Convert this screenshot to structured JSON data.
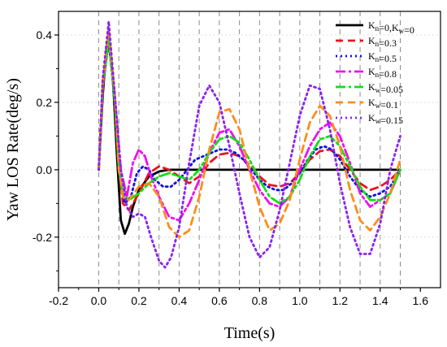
{
  "chart_data": {
    "type": "line",
    "xlabel": "Time(s)",
    "ylabel": "Yaw LOS Rate(deg/s)",
    "xlim": [
      -0.2,
      1.7
    ],
    "ylim": [
      -0.35,
      0.47
    ],
    "xticks": [
      -0.2,
      0.0,
      0.2,
      0.4,
      0.6,
      0.8,
      1.0,
      1.2,
      1.4,
      1.6
    ],
    "xtick_labels": [
      "-0.2",
      "0.0",
      "0.2",
      "0.4",
      "0.6",
      "0.8",
      "1.0",
      "1.2",
      "1.4",
      "1.6"
    ],
    "yticks": [
      -0.2,
      0.0,
      0.2,
      0.4
    ],
    "ytick_labels": [
      "-0.2",
      "0.0",
      "0.2",
      "0.4"
    ],
    "vertical_gridlines_x": [
      0.0,
      0.1,
      0.2,
      0.3,
      0.4,
      0.5,
      0.6,
      0.7,
      0.8,
      0.9,
      1.0,
      1.1,
      1.2,
      1.3,
      1.4,
      1.5
    ],
    "legend_position": "top-right",
    "series": [
      {
        "name": "Kn=0,Kw=0",
        "name_main": "K",
        "name_sub": "n",
        "name_rest": "=0,K",
        "name_sub2": "w",
        "name_tail": "=0",
        "color": "#000000",
        "style": "solid",
        "x": [
          0.0,
          0.02,
          0.04,
          0.05,
          0.07,
          0.09,
          0.11,
          0.13,
          0.15,
          0.17,
          0.2,
          0.25,
          0.3,
          0.35,
          0.4,
          0.5,
          0.6,
          0.8,
          1.0,
          1.2,
          1.4,
          1.5
        ],
        "y": [
          0.0,
          0.22,
          0.37,
          0.38,
          0.28,
          0.05,
          -0.15,
          -0.19,
          -0.16,
          -0.11,
          -0.06,
          -0.02,
          -0.005,
          0.0,
          0.0,
          0.0,
          0.0,
          0.0,
          0.0,
          0.0,
          0.0,
          0.0
        ]
      },
      {
        "name": "Kn=0.3",
        "name_main": "K",
        "name_sub": "n",
        "name_tail": "=0.3",
        "color": "#e8141e",
        "style": "dash",
        "x": [
          0.0,
          0.02,
          0.05,
          0.08,
          0.1,
          0.12,
          0.15,
          0.2,
          0.25,
          0.3,
          0.35,
          0.4,
          0.45,
          0.5,
          0.55,
          0.6,
          0.65,
          0.7,
          0.75,
          0.8,
          0.85,
          0.9,
          0.95,
          1.0,
          1.05,
          1.1,
          1.15,
          1.2,
          1.25,
          1.3,
          1.35,
          1.4,
          1.45,
          1.5
        ],
        "y": [
          0.0,
          0.24,
          0.39,
          0.22,
          0.02,
          -0.1,
          -0.12,
          -0.07,
          -0.01,
          0.01,
          0.0,
          -0.02,
          -0.04,
          -0.02,
          0.02,
          0.045,
          0.05,
          0.04,
          0.015,
          -0.02,
          -0.045,
          -0.05,
          -0.04,
          -0.01,
          0.03,
          0.055,
          0.06,
          0.04,
          0.0,
          -0.04,
          -0.06,
          -0.05,
          -0.03,
          0.0
        ]
      },
      {
        "name": "Kn=0.5",
        "name_main": "K",
        "name_sub": "n",
        "name_tail": "=0.5",
        "color": "#1010e0",
        "style": "dot",
        "x": [
          0.0,
          0.02,
          0.05,
          0.08,
          0.1,
          0.13,
          0.16,
          0.19,
          0.22,
          0.25,
          0.28,
          0.32,
          0.36,
          0.4,
          0.44,
          0.48,
          0.52,
          0.56,
          0.6,
          0.64,
          0.68,
          0.72,
          0.76,
          0.8,
          0.84,
          0.88,
          0.92,
          0.96,
          1.0,
          1.04,
          1.08,
          1.12,
          1.16,
          1.2,
          1.25,
          1.3,
          1.35,
          1.4,
          1.45,
          1.5
        ],
        "y": [
          0.0,
          0.25,
          0.38,
          0.2,
          0.0,
          -0.1,
          -0.08,
          -0.01,
          0.01,
          0.0,
          -0.03,
          -0.05,
          -0.05,
          -0.03,
          0.0,
          0.03,
          0.04,
          0.05,
          0.06,
          0.06,
          0.05,
          0.03,
          0.0,
          -0.03,
          -0.05,
          -0.06,
          -0.06,
          -0.04,
          -0.01,
          0.03,
          0.06,
          0.07,
          0.06,
          0.03,
          -0.02,
          -0.06,
          -0.08,
          -0.07,
          -0.05,
          0.0
        ]
      },
      {
        "name": "Kn=0.8",
        "name_main": "K",
        "name_sub": "n",
        "name_tail": "=0.8",
        "color": "#ee10ee",
        "style": "dashdot",
        "x": [
          0.0,
          0.02,
          0.05,
          0.08,
          0.11,
          0.14,
          0.17,
          0.2,
          0.23,
          0.26,
          0.3,
          0.35,
          0.4,
          0.45,
          0.5,
          0.55,
          0.6,
          0.65,
          0.7,
          0.75,
          0.8,
          0.85,
          0.9,
          0.95,
          1.0,
          1.05,
          1.1,
          1.15,
          1.2,
          1.25,
          1.3,
          1.35,
          1.4,
          1.45,
          1.5
        ],
        "y": [
          0.0,
          0.25,
          0.4,
          0.22,
          0.0,
          -0.08,
          0.02,
          0.06,
          0.04,
          -0.02,
          -0.08,
          -0.14,
          -0.15,
          -0.1,
          -0.03,
          0.05,
          0.11,
          0.12,
          0.07,
          0.0,
          -0.06,
          -0.1,
          -0.11,
          -0.08,
          0.0,
          0.07,
          0.12,
          0.14,
          0.1,
          0.02,
          -0.07,
          -0.11,
          -0.09,
          -0.07,
          0.0
        ]
      },
      {
        "name": "Kw=0.05",
        "name_main": "K",
        "name_sub": "w",
        "name_tail": "=0.05",
        "color": "#11e011",
        "style": "dashdot",
        "x": [
          0.0,
          0.02,
          0.05,
          0.08,
          0.1,
          0.12,
          0.15,
          0.2,
          0.25,
          0.3,
          0.35,
          0.4,
          0.45,
          0.5,
          0.55,
          0.6,
          0.65,
          0.7,
          0.75,
          0.8,
          0.85,
          0.9,
          0.95,
          1.0,
          1.05,
          1.1,
          1.15,
          1.2,
          1.25,
          1.3,
          1.35,
          1.4,
          1.45,
          1.5
        ],
        "y": [
          0.0,
          0.25,
          0.39,
          0.2,
          0.0,
          -0.07,
          -0.09,
          -0.07,
          -0.04,
          -0.02,
          -0.01,
          -0.02,
          -0.03,
          0.0,
          0.05,
          0.09,
          0.1,
          0.08,
          0.03,
          -0.03,
          -0.08,
          -0.1,
          -0.08,
          -0.03,
          0.04,
          0.09,
          0.1,
          0.07,
          0.01,
          -0.05,
          -0.09,
          -0.09,
          -0.07,
          0.0
        ]
      },
      {
        "name": "Kw=0.1",
        "name_main": "K",
        "name_sub": "w",
        "name_tail": "=0.1",
        "color": "#ff8c1a",
        "style": "dash",
        "x": [
          0.0,
          0.02,
          0.05,
          0.08,
          0.1,
          0.12,
          0.15,
          0.2,
          0.25,
          0.3,
          0.35,
          0.4,
          0.45,
          0.5,
          0.55,
          0.6,
          0.65,
          0.7,
          0.75,
          0.8,
          0.85,
          0.9,
          0.95,
          1.0,
          1.05,
          1.1,
          1.15,
          1.2,
          1.25,
          1.3,
          1.35,
          1.4,
          1.45,
          1.5
        ],
        "y": [
          0.0,
          0.26,
          0.42,
          0.22,
          0.0,
          -0.08,
          -0.09,
          -0.05,
          -0.04,
          -0.08,
          -0.17,
          -0.2,
          -0.18,
          -0.08,
          0.06,
          0.17,
          0.18,
          0.12,
          0.0,
          -0.11,
          -0.18,
          -0.16,
          -0.09,
          0.03,
          0.14,
          0.19,
          0.16,
          0.07,
          -0.06,
          -0.15,
          -0.18,
          -0.14,
          -0.07,
          0.03
        ]
      },
      {
        "name": "Kw=0.15",
        "name_main": "K",
        "name_sub": "w",
        "name_tail": "=0.15",
        "color": "#8b22ee",
        "style": "dot",
        "x": [
          0.0,
          0.02,
          0.05,
          0.08,
          0.11,
          0.14,
          0.17,
          0.2,
          0.23,
          0.26,
          0.3,
          0.33,
          0.36,
          0.4,
          0.45,
          0.5,
          0.55,
          0.6,
          0.65,
          0.7,
          0.75,
          0.8,
          0.85,
          0.9,
          0.95,
          1.0,
          1.05,
          1.1,
          1.15,
          1.2,
          1.25,
          1.3,
          1.35,
          1.4,
          1.45,
          1.5
        ],
        "y": [
          0.0,
          0.27,
          0.44,
          0.22,
          0.0,
          -0.11,
          -0.14,
          -0.13,
          -0.14,
          -0.2,
          -0.27,
          -0.29,
          -0.26,
          -0.17,
          0.02,
          0.19,
          0.25,
          0.2,
          0.07,
          -0.07,
          -0.2,
          -0.26,
          -0.23,
          -0.12,
          0.02,
          0.16,
          0.25,
          0.24,
          0.12,
          -0.04,
          -0.17,
          -0.25,
          -0.25,
          -0.16,
          0.0,
          0.1
        ]
      }
    ]
  }
}
